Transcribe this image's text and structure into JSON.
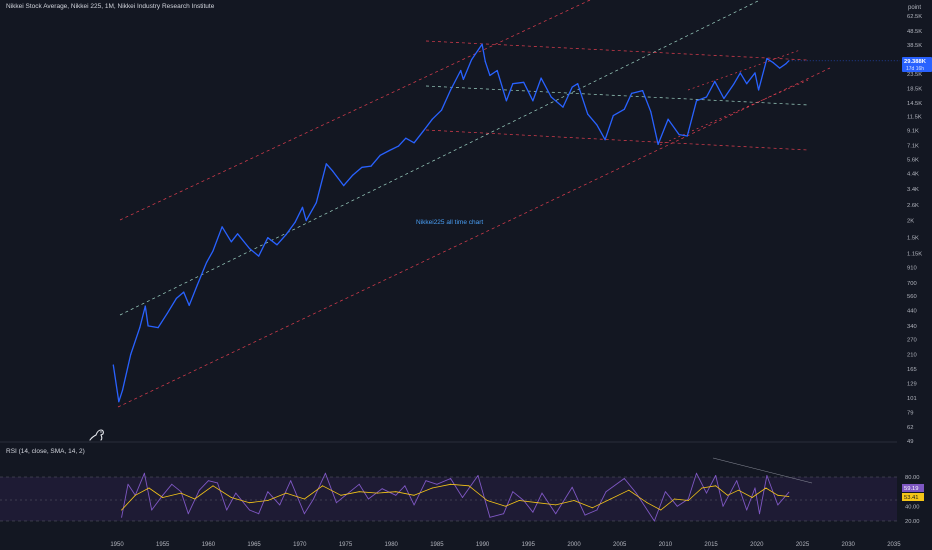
{
  "header": {
    "title": "Nikkei Stock Average, Nikkei 225, 1M, Nikkei Industry Research Institute"
  },
  "price_scale": {
    "unit_label": "point",
    "ticks": [
      "62.5K",
      "48.5K",
      "38.5K",
      "29.5K",
      "23.5K",
      "18.5K",
      "14.5K",
      "11.5K",
      "9.1K",
      "7.1K",
      "5.6K",
      "4.4K",
      "3.4K",
      "2.6K",
      "2K",
      "1.5K",
      "1.15K",
      "910",
      "700",
      "560",
      "440",
      "340",
      "270",
      "210",
      "165",
      "129",
      "101",
      "79",
      "62",
      "49"
    ]
  },
  "price_badge": {
    "value": "29.388K",
    "countdown": "17d 16h",
    "color": "#2962ff"
  },
  "annotation": {
    "text": "Nikkei225 all time chart"
  },
  "rsi_panel": {
    "title": "RSI (14, close, SMA, 14, 2)",
    "ticks": [
      "80.00",
      "40.00",
      "20.00"
    ],
    "rsi_value": "59.19",
    "sma_value": "53.41",
    "rsi_color": "#7e57c2",
    "sma_color": "#f5c518"
  },
  "time_axis": {
    "ticks": [
      "1950",
      "1955",
      "1960",
      "1965",
      "1970",
      "1975",
      "1980",
      "1985",
      "1990",
      "1995",
      "2000",
      "2005",
      "2010",
      "2015",
      "2020",
      "2025",
      "2030",
      "2035"
    ]
  },
  "chart_data": [
    {
      "type": "line",
      "ylabel": "point",
      "y_scale": "log",
      "ylim": [
        49,
        62500
      ],
      "xlim": [
        1949,
        2036
      ],
      "series": [
        {
          "values": [
            [
              1949.6,
              176
            ],
            [
              1950.2,
              95
            ],
            [
              1950.6,
              115
            ],
            [
              1951.5,
              210
            ],
            [
              1952.5,
              330
            ],
            [
              1953.1,
              474
            ],
            [
              1953.4,
              340
            ],
            [
              1954.5,
              330
            ],
            [
              1955.5,
              420
            ],
            [
              1956.5,
              540
            ],
            [
              1957.3,
              600
            ],
            [
              1957.9,
              480
            ],
            [
              1958.8,
              680
            ],
            [
              1959.8,
              990
            ],
            [
              1960.5,
              1200
            ],
            [
              1961.5,
              1800
            ],
            [
              1962.5,
              1400
            ],
            [
              1963.2,
              1600
            ],
            [
              1964.5,
              1250
            ],
            [
              1965.5,
              1100
            ],
            [
              1966.5,
              1500
            ],
            [
              1967.5,
              1330
            ],
            [
              1968.5,
              1580
            ],
            [
              1969.5,
              1950
            ],
            [
              1970.3,
              2500
            ],
            [
              1970.7,
              2000
            ],
            [
              1971.8,
              2700
            ],
            [
              1972.9,
              5200
            ],
            [
              1973.6,
              4600
            ],
            [
              1974.8,
              3600
            ],
            [
              1975.8,
              4300
            ],
            [
              1976.8,
              4900
            ],
            [
              1977.8,
              5000
            ],
            [
              1978.8,
              6000
            ],
            [
              1979.8,
              6500
            ],
            [
              1980.8,
              7000
            ],
            [
              1981.6,
              8000
            ],
            [
              1982.5,
              7400
            ],
            [
              1983.5,
              9000
            ],
            [
              1984.5,
              11000
            ],
            [
              1985.5,
              12800
            ],
            [
              1986.5,
              18000
            ],
            [
              1987.6,
              25000
            ],
            [
              1987.9,
              21500
            ],
            [
              1988.8,
              30000
            ],
            [
              1989.95,
              38916
            ],
            [
              1990.3,
              29000
            ],
            [
              1990.8,
              23000
            ],
            [
              1991.6,
              25000
            ],
            [
              1992.6,
              15000
            ],
            [
              1993.3,
              20000
            ],
            [
              1994.5,
              20500
            ],
            [
              1995.5,
              15000
            ],
            [
              1996.4,
              22000
            ],
            [
              1997.5,
              16000
            ],
            [
              1998.8,
              13500
            ],
            [
              1999.8,
              18900
            ],
            [
              2000.4,
              20000
            ],
            [
              2001.5,
              12000
            ],
            [
              2002.5,
              10000
            ],
            [
              2003.4,
              7800
            ],
            [
              2004.3,
              11700
            ],
            [
              2005.5,
              13000
            ],
            [
              2006.3,
              17000
            ],
            [
              2007.5,
              17800
            ],
            [
              2008.4,
              12500
            ],
            [
              2009.2,
              7200
            ],
            [
              2010.3,
              11000
            ],
            [
              2011.5,
              8500
            ],
            [
              2012.4,
              8300
            ],
            [
              2013.4,
              15000
            ],
            [
              2014.5,
              16000
            ],
            [
              2015.4,
              20800
            ],
            [
              2016.4,
              15600
            ],
            [
              2017.5,
              20000
            ],
            [
              2018.2,
              24000
            ],
            [
              2018.9,
              20000
            ],
            [
              2019.8,
              24000
            ],
            [
              2020.2,
              18000
            ],
            [
              2021.1,
              30500
            ],
            [
              2021.8,
              28500
            ],
            [
              2022.5,
              26000
            ],
            [
              2023.2,
              28000
            ],
            [
              2023.5,
              29388
            ]
          ]
        }
      ]
    },
    {
      "type": "line",
      "ylim": [
        10,
        90
      ],
      "y_ticks": [
        80,
        40,
        20
      ],
      "series": [
        {
          "name": "RSI",
          "values": [
            [
              1950.5,
              25
            ],
            [
              1951.2,
              70
            ],
            [
              1952,
              55
            ],
            [
              1953,
              85
            ],
            [
              1953.8,
              35
            ],
            [
              1955,
              55
            ],
            [
              1956,
              70
            ],
            [
              1957,
              60
            ],
            [
              1957.8,
              30
            ],
            [
              1959,
              62
            ],
            [
              1960,
              75
            ],
            [
              1961,
              72
            ],
            [
              1962,
              35
            ],
            [
              1963,
              58
            ],
            [
              1964.5,
              35
            ],
            [
              1965.5,
              30
            ],
            [
              1966.5,
              60
            ],
            [
              1967.8,
              42
            ],
            [
              1969,
              75
            ],
            [
              1970.5,
              30
            ],
            [
              1971.5,
              50
            ],
            [
              1972.8,
              85
            ],
            [
              1974,
              45
            ],
            [
              1975,
              55
            ],
            [
              1976.5,
              70
            ],
            [
              1977.5,
              50
            ],
            [
              1979,
              64
            ],
            [
              1980.5,
              55
            ],
            [
              1981.5,
              68
            ],
            [
              1982.5,
              42
            ],
            [
              1983.8,
              75
            ],
            [
              1985,
              70
            ],
            [
              1986.5,
              78
            ],
            [
              1987.8,
              52
            ],
            [
              1989.5,
              82
            ],
            [
              1990.8,
              25
            ],
            [
              1992.3,
              30
            ],
            [
              1993.3,
              60
            ],
            [
              1994.5,
              48
            ],
            [
              1995.5,
              32
            ],
            [
              1996.5,
              58
            ],
            [
              1998,
              30
            ],
            [
              1999.8,
              66
            ],
            [
              2001.2,
              28
            ],
            [
              2002.5,
              35
            ],
            [
              2003.5,
              60
            ],
            [
              2005.5,
              78
            ],
            [
              2006.8,
              58
            ],
            [
              2008.8,
              20
            ],
            [
              2010,
              60
            ],
            [
              2011.3,
              40
            ],
            [
              2012.5,
              50
            ],
            [
              2013.4,
              85
            ],
            [
              2014.5,
              58
            ],
            [
              2015.5,
              82
            ],
            [
              2016.3,
              40
            ],
            [
              2017.8,
              75
            ],
            [
              2018.9,
              35
            ],
            [
              2019.8,
              65
            ],
            [
              2020.3,
              30
            ],
            [
              2021.1,
              82
            ],
            [
              2022.3,
              42
            ],
            [
              2023.5,
              59.19
            ]
          ]
        },
        {
          "name": "SMA",
          "values": [
            [
              1950.5,
              35
            ],
            [
              1952,
              55
            ],
            [
              1953.5,
              65
            ],
            [
              1955,
              52
            ],
            [
              1957,
              58
            ],
            [
              1958.5,
              50
            ],
            [
              1960.5,
              68
            ],
            [
              1962.5,
              52
            ],
            [
              1964.5,
              45
            ],
            [
              1966.5,
              48
            ],
            [
              1968.5,
              58
            ],
            [
              1970.5,
              50
            ],
            [
              1972.5,
              68
            ],
            [
              1974.5,
              55
            ],
            [
              1976.5,
              60
            ],
            [
              1978.5,
              58
            ],
            [
              1980.5,
              60
            ],
            [
              1982.5,
              55
            ],
            [
              1984.5,
              65
            ],
            [
              1986.5,
              70
            ],
            [
              1988.5,
              68
            ],
            [
              1990.5,
              48
            ],
            [
              1992.5,
              40
            ],
            [
              1994,
              48
            ],
            [
              1996,
              45
            ],
            [
              1998,
              42
            ],
            [
              2000,
              48
            ],
            [
              2002,
              38
            ],
            [
              2004,
              50
            ],
            [
              2006,
              62
            ],
            [
              2008,
              45
            ],
            [
              2009.5,
              35
            ],
            [
              2011,
              50
            ],
            [
              2012.5,
              48
            ],
            [
              2014,
              65
            ],
            [
              2015.5,
              68
            ],
            [
              2016.8,
              55
            ],
            [
              2018,
              62
            ],
            [
              2019.5,
              52
            ],
            [
              2021,
              65
            ],
            [
              2022.3,
              55
            ],
            [
              2023.5,
              53.41
            ]
          ]
        }
      ]
    }
  ]
}
